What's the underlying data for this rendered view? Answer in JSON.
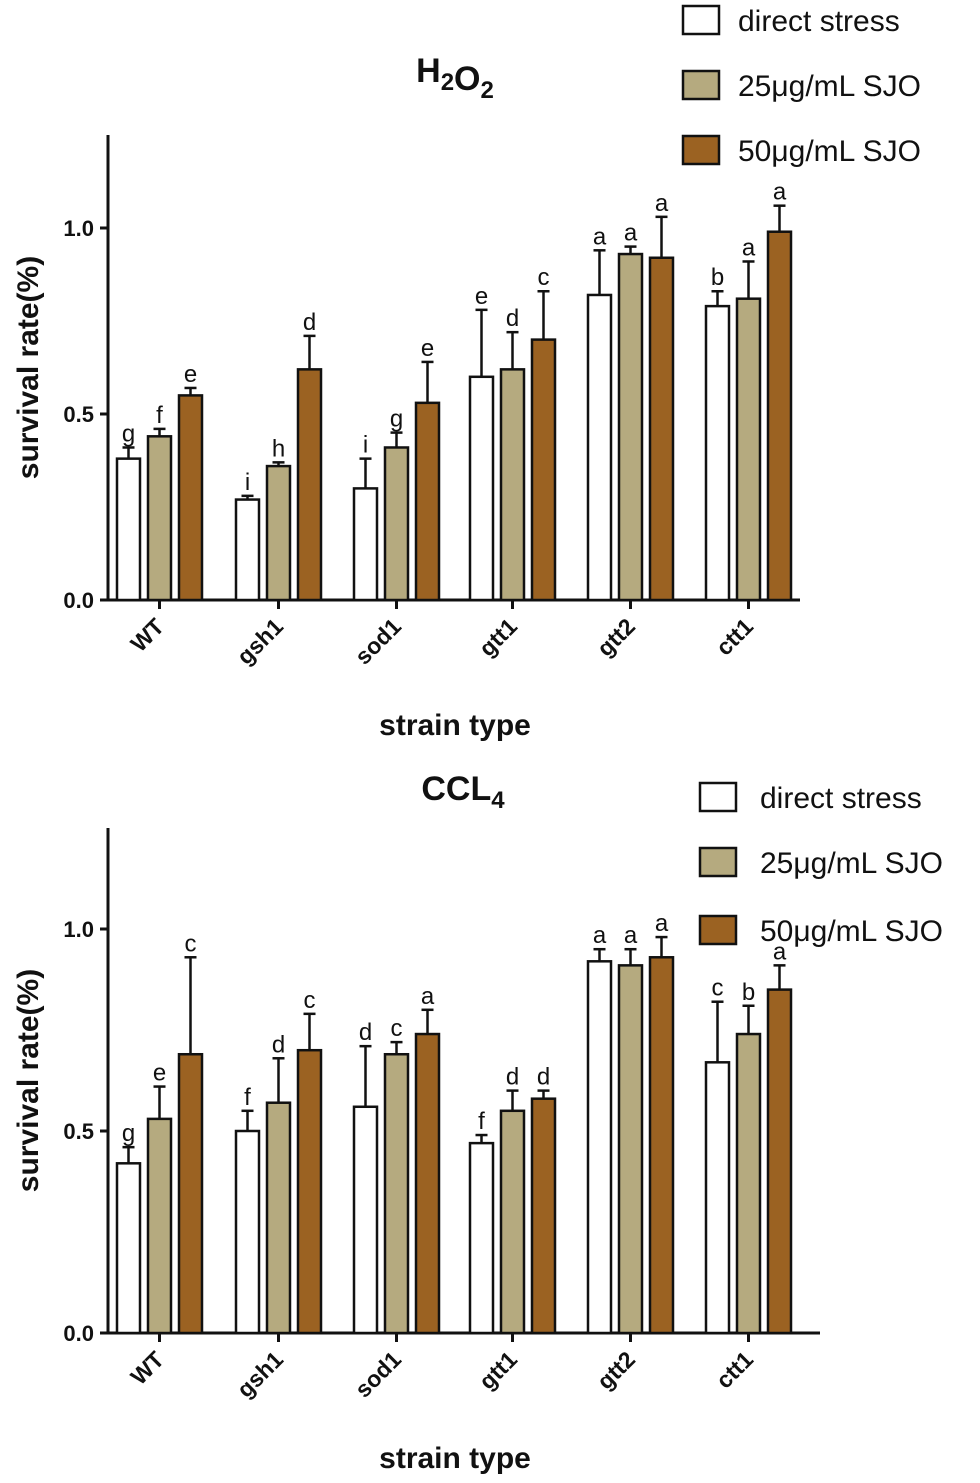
{
  "chart_data": [
    {
      "type": "bar",
      "title": "H",
      "title_sub": [
        "2",
        "O",
        "2"
      ],
      "xlabel": "strain type",
      "ylabel": "survival rate(%)",
      "ylim": [
        0,
        1.25
      ],
      "yticks": [
        "0.0",
        "0.5",
        "1.0"
      ],
      "legend_placement": "top-right",
      "categories": [
        "WT",
        "gsh1",
        "sod1",
        "gtt1",
        "gtt2",
        "ctt1"
      ],
      "series": [
        {
          "name": "direct stress",
          "color": "#ffffff",
          "values": [
            0.38,
            0.27,
            0.3,
            0.6,
            0.82,
            0.79
          ],
          "errors": [
            0.03,
            0.01,
            0.08,
            0.18,
            0.12,
            0.04
          ],
          "labels": [
            "g",
            "i",
            "i",
            "e",
            "a",
            "b"
          ]
        },
        {
          "name": "25μg/mL SJO",
          "color": "#b5aa7f",
          "values": [
            0.44,
            0.36,
            0.41,
            0.62,
            0.93,
            0.81
          ],
          "errors": [
            0.02,
            0.01,
            0.04,
            0.1,
            0.02,
            0.1
          ],
          "labels": [
            "f",
            "h",
            "g",
            "d",
            "a",
            "a"
          ]
        },
        {
          "name": "50μg/mL SJO",
          "color": "#9b6222",
          "values": [
            0.55,
            0.62,
            0.53,
            0.7,
            0.92,
            0.99
          ],
          "errors": [
            0.02,
            0.09,
            0.11,
            0.13,
            0.11,
            0.07
          ],
          "labels": [
            "e",
            "d",
            "e",
            "c",
            "a",
            "a"
          ]
        }
      ]
    },
    {
      "type": "bar",
      "title": "CCL",
      "title_sub": [
        "4"
      ],
      "xlabel": "strain type",
      "ylabel": "survival rate(%)",
      "ylim": [
        0,
        1.25
      ],
      "yticks": [
        "0.0",
        "0.5",
        "1.0"
      ],
      "legend_placement": "top-right",
      "categories": [
        "WT",
        "gsh1",
        "sod1",
        "gtt1",
        "gtt2",
        "ctt1"
      ],
      "series": [
        {
          "name": "direct stress",
          "color": "#ffffff",
          "values": [
            0.42,
            0.5,
            0.56,
            0.47,
            0.92,
            0.67
          ],
          "errors": [
            0.04,
            0.05,
            0.15,
            0.02,
            0.03,
            0.15
          ],
          "labels": [
            "g",
            "f",
            "d",
            "f",
            "a",
            "c"
          ]
        },
        {
          "name": "25μg/mL SJO",
          "color": "#b5aa7f",
          "values": [
            0.53,
            0.57,
            0.69,
            0.55,
            0.91,
            0.74
          ],
          "errors": [
            0.08,
            0.11,
            0.03,
            0.05,
            0.04,
            0.07
          ],
          "labels": [
            "e",
            "d",
            "c",
            "d",
            "a",
            "b"
          ]
        },
        {
          "name": "50μg/mL SJO",
          "color": "#9b6222",
          "values": [
            0.69,
            0.7,
            0.74,
            0.58,
            0.93,
            0.85
          ],
          "errors": [
            0.24,
            0.09,
            0.06,
            0.02,
            0.05,
            0.06
          ],
          "labels": [
            "c",
            "c",
            "a",
            "d",
            "a",
            "a"
          ]
        }
      ]
    }
  ]
}
